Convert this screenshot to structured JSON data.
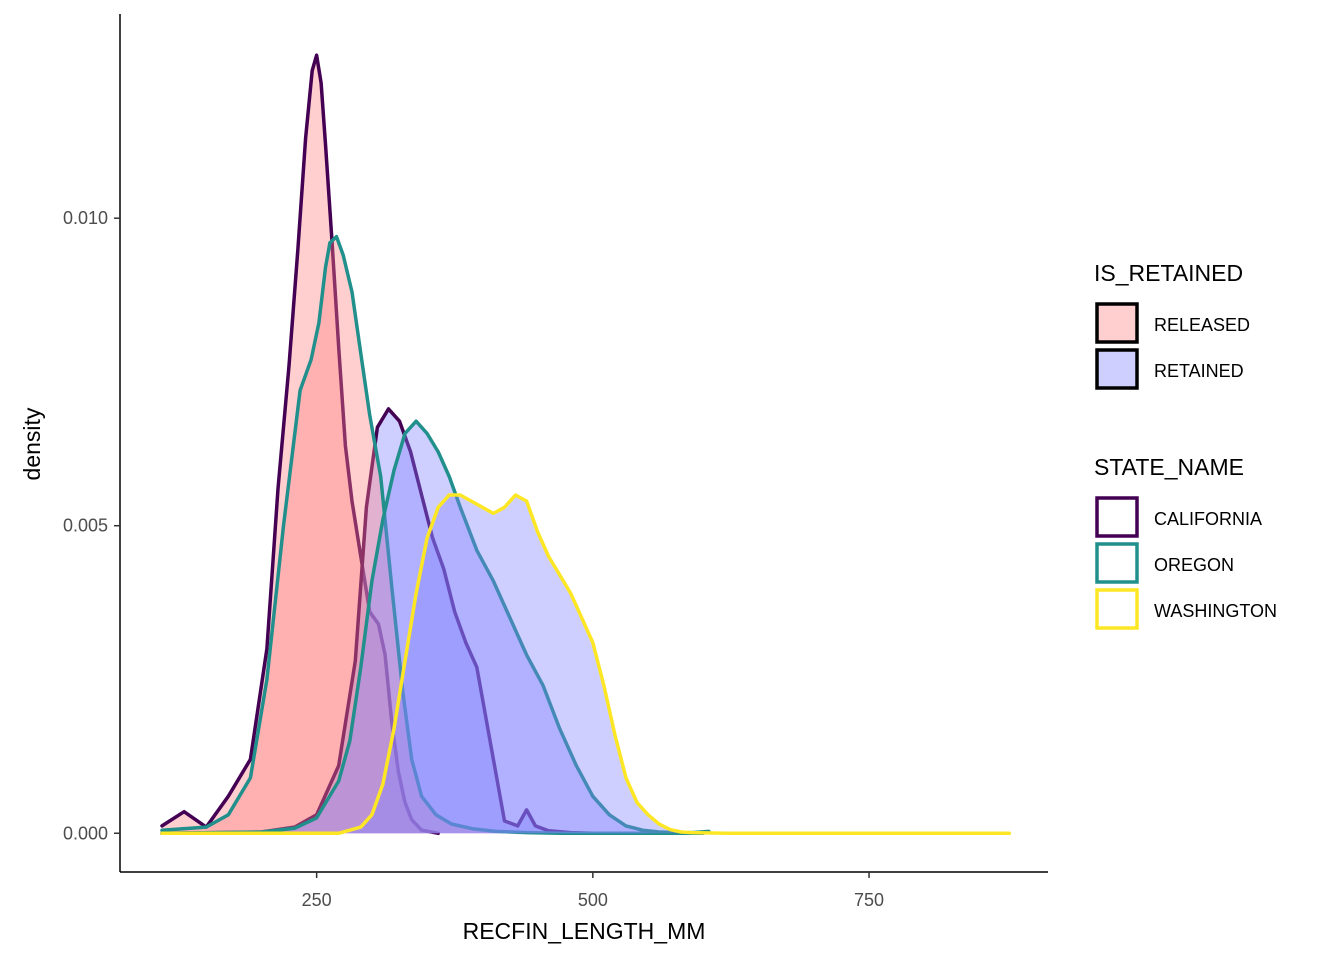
{
  "chart_data": {
    "type": "area",
    "xlabel": "RECFIN_LENGTH_MM",
    "ylabel": "density",
    "xlim": [
      72,
      912
    ],
    "ylim": [
      -0.00063,
      0.01332
    ],
    "x_ticks": [
      250,
      500,
      750
    ],
    "x_tick_labels": [
      "250",
      "500",
      "750"
    ],
    "y_ticks": [
      0.0,
      0.005,
      0.01
    ],
    "y_tick_labels": [
      "0.000",
      "0.005",
      "0.010"
    ],
    "grid": false,
    "legend_position": "right",
    "fill_legend": {
      "title": "IS_RETAINED",
      "items": [
        {
          "label": "RELEASED",
          "color": "#ff8080"
        },
        {
          "label": "RETAINED",
          "color": "#8080ff"
        }
      ]
    },
    "color_legend": {
      "title": "STATE_NAME",
      "items": [
        {
          "label": "CALIFORNIA",
          "color": "#440154"
        },
        {
          "label": "OREGON",
          "color": "#21908c"
        },
        {
          "label": "WASHINGTON",
          "color": "#fde725"
        }
      ]
    },
    "series": [
      {
        "state": "CALIFORNIA",
        "retained": "RELEASED",
        "x": [
          110,
          130,
          150,
          170,
          190,
          205,
          215,
          225,
          233,
          240,
          246,
          250,
          254,
          258,
          264,
          270,
          276,
          282,
          290,
          298,
          306,
          312,
          318,
          324,
          330,
          336,
          345,
          360
        ],
        "y": [
          0.00012,
          0.00035,
          0.0001,
          0.0006,
          0.0012,
          0.003,
          0.0056,
          0.0076,
          0.0095,
          0.0113,
          0.0124,
          0.01265,
          0.0122,
          0.0112,
          0.0096,
          0.0079,
          0.0063,
          0.0054,
          0.0045,
          0.0036,
          0.0034,
          0.0029,
          0.0018,
          0.001,
          0.0005,
          0.00022,
          5e-05,
          0.0
        ]
      },
      {
        "state": "CALIFORNIA",
        "retained": "RETAINED",
        "x": [
          110,
          200,
          230,
          250,
          270,
          285,
          295,
          305,
          315,
          325,
          335,
          345,
          355,
          365,
          375,
          385,
          395,
          410,
          420,
          432,
          440,
          448,
          460,
          480,
          500,
          520,
          540,
          560,
          575
        ],
        "y": [
          0.0,
          2e-05,
          0.0001,
          0.0003,
          0.0011,
          0.0028,
          0.0053,
          0.0066,
          0.0069,
          0.0067,
          0.0062,
          0.0055,
          0.0048,
          0.0043,
          0.0036,
          0.0031,
          0.0027,
          0.0012,
          0.0002,
          0.00012,
          0.00038,
          0.00012,
          4e-05,
          1e-05,
          0.0,
          0.0,
          0.0,
          0.0,
          0.0
        ]
      },
      {
        "state": "OREGON",
        "retained": "RELEASED",
        "x": [
          110,
          150,
          170,
          190,
          205,
          220,
          235,
          245,
          252,
          258,
          262,
          268,
          274,
          282,
          290,
          298,
          308,
          318,
          328,
          336,
          345,
          358,
          372,
          392,
          412,
          440,
          470,
          500,
          530,
          560,
          600
        ],
        "y": [
          5e-05,
          0.0001,
          0.0003,
          0.0009,
          0.0025,
          0.005,
          0.0072,
          0.0077,
          0.0083,
          0.0092,
          0.0096,
          0.0097,
          0.0094,
          0.0088,
          0.0078,
          0.0068,
          0.0058,
          0.004,
          0.0023,
          0.0012,
          0.0006,
          0.0003,
          0.00015,
          7e-05,
          3e-05,
          1e-05,
          0.0,
          0.0,
          0.0,
          0.0,
          0.0
        ]
      },
      {
        "state": "OREGON",
        "retained": "RETAINED",
        "x": [
          110,
          200,
          230,
          250,
          270,
          280,
          290,
          300,
          310,
          320,
          330,
          340,
          350,
          360,
          370,
          380,
          395,
          410,
          425,
          440,
          455,
          470,
          485,
          500,
          515,
          530,
          545,
          560,
          575,
          590,
          605
        ],
        "y": [
          0.0,
          2e-05,
          8e-05,
          0.00025,
          0.00085,
          0.0015,
          0.0027,
          0.0041,
          0.0051,
          0.0059,
          0.0065,
          0.0067,
          0.0065,
          0.0062,
          0.0058,
          0.0053,
          0.0046,
          0.0041,
          0.0035,
          0.0029,
          0.0024,
          0.0017,
          0.0011,
          0.0006,
          0.0003,
          0.00012,
          5e-05,
          2e-05,
          1e-05,
          1e-05,
          3e-05
        ]
      },
      {
        "state": "WASHINGTON",
        "retained": "RETAINED",
        "x": [
          110,
          270,
          290,
          300,
          310,
          320,
          330,
          340,
          350,
          360,
          370,
          380,
          390,
          400,
          410,
          420,
          430,
          440,
          450,
          460,
          470,
          480,
          490,
          500,
          510,
          520,
          530,
          540,
          550,
          560,
          570,
          580,
          590,
          620,
          700,
          800,
          877
        ],
        "y": [
          0.0,
          0.0,
          0.0001,
          0.0003,
          0.0008,
          0.0017,
          0.0028,
          0.0039,
          0.0048,
          0.0053,
          0.0055,
          0.0055,
          0.0054,
          0.0053,
          0.0052,
          0.0053,
          0.0055,
          0.0054,
          0.0049,
          0.0045,
          0.0042,
          0.0039,
          0.0035,
          0.0031,
          0.0024,
          0.0016,
          0.0009,
          0.0005,
          0.0003,
          0.00015,
          6e-05,
          2e-05,
          1e-05,
          0.0,
          0.0,
          0.0,
          0.0
        ]
      }
    ]
  }
}
